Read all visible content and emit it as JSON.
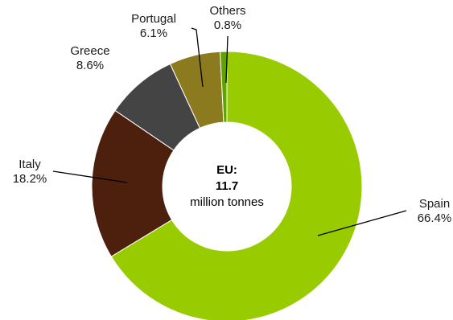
{
  "chart_data": {
    "type": "pie",
    "variant": "donut",
    "title": "",
    "center_label": {
      "line1": "EU:",
      "line2": "11.7",
      "line3": "million tonnes"
    },
    "slices": [
      {
        "name": "Spain",
        "value": 66.4,
        "value_label": "66.4%",
        "color": "#99cc00"
      },
      {
        "name": "Italy",
        "value": 18.2,
        "value_label": "18.2%",
        "color": "#4d1f0d"
      },
      {
        "name": "Greece",
        "value": 8.6,
        "value_label": "8.6%",
        "color": "#444444"
      },
      {
        "name": "Portugal",
        "value": 6.1,
        "value_label": "6.1%",
        "color": "#8c7a1f"
      },
      {
        "name": "Others",
        "value": 0.8,
        "value_label": "0.8%",
        "color": "#5fa300"
      }
    ],
    "legend": "none",
    "labels": "outside-with-leaders"
  }
}
